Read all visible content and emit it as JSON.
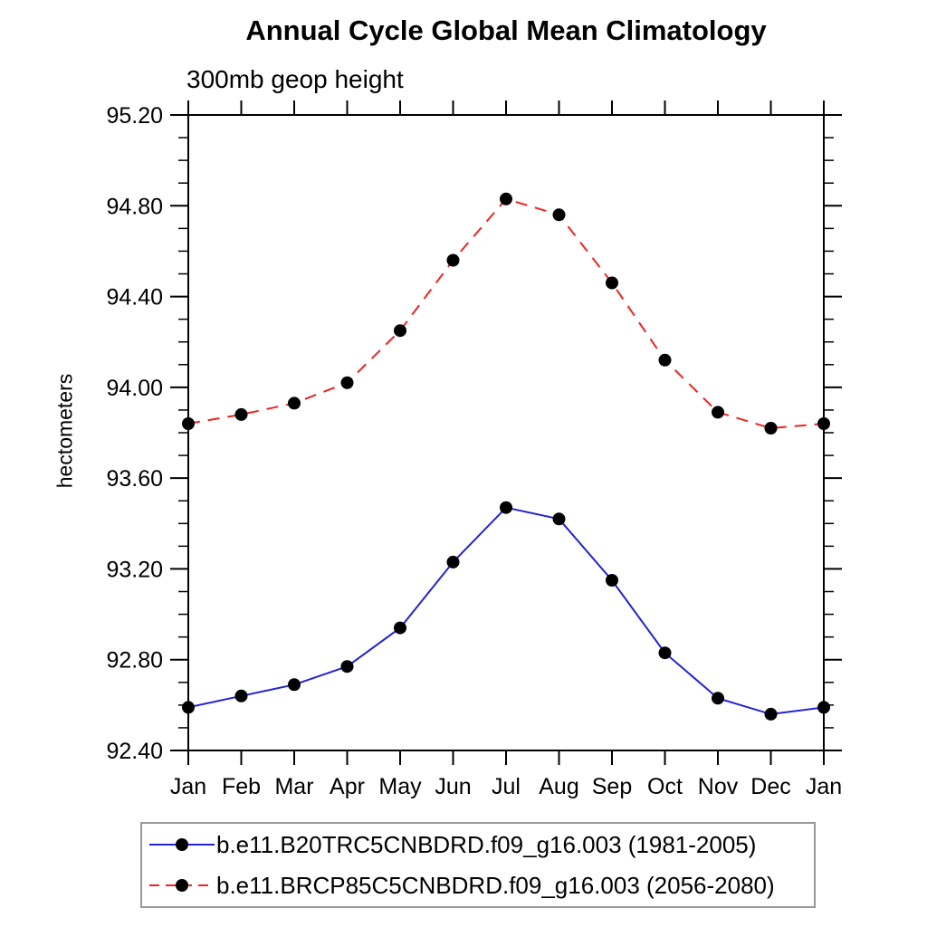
{
  "page": {
    "background": "#ffffff"
  },
  "chart_data": {
    "type": "line",
    "title": "Annual Cycle Global Mean Climatology",
    "subtitle": "300mb geop height",
    "ylabel": "hectometers",
    "xlabel": "",
    "categories": [
      "Jan",
      "Feb",
      "Mar",
      "Apr",
      "May",
      "Jun",
      "Jul",
      "Aug",
      "Sep",
      "Oct",
      "Nov",
      "Dec",
      "Jan"
    ],
    "ylim": [
      92.4,
      95.2
    ],
    "y_major_step": 0.4,
    "y_minor_step": 0.1,
    "y_tick_decimals": 2,
    "grid": false,
    "legend_position": "bottom",
    "frame_color": "#000000",
    "marker_color": "#000000",
    "series": [
      {
        "name": "b.e11.B20TRC5CNBDRD.f09_g16.003 (1981-2005)",
        "color": "#2323d2",
        "style": "solid",
        "marker": "filled-circle",
        "values": [
          92.59,
          92.64,
          92.69,
          92.77,
          92.94,
          93.23,
          93.47,
          93.42,
          93.15,
          92.83,
          92.63,
          92.56,
          92.59
        ]
      },
      {
        "name": "b.e11.BRCP85C5CNBDRD.f09_g16.003 (2056-2080)",
        "color": "#ee2222",
        "style": "dashed",
        "marker": "filled-circle",
        "values": [
          93.84,
          93.88,
          93.93,
          94.02,
          94.25,
          94.56,
          94.83,
          94.76,
          94.46,
          94.12,
          93.89,
          93.82,
          93.84
        ]
      }
    ]
  }
}
